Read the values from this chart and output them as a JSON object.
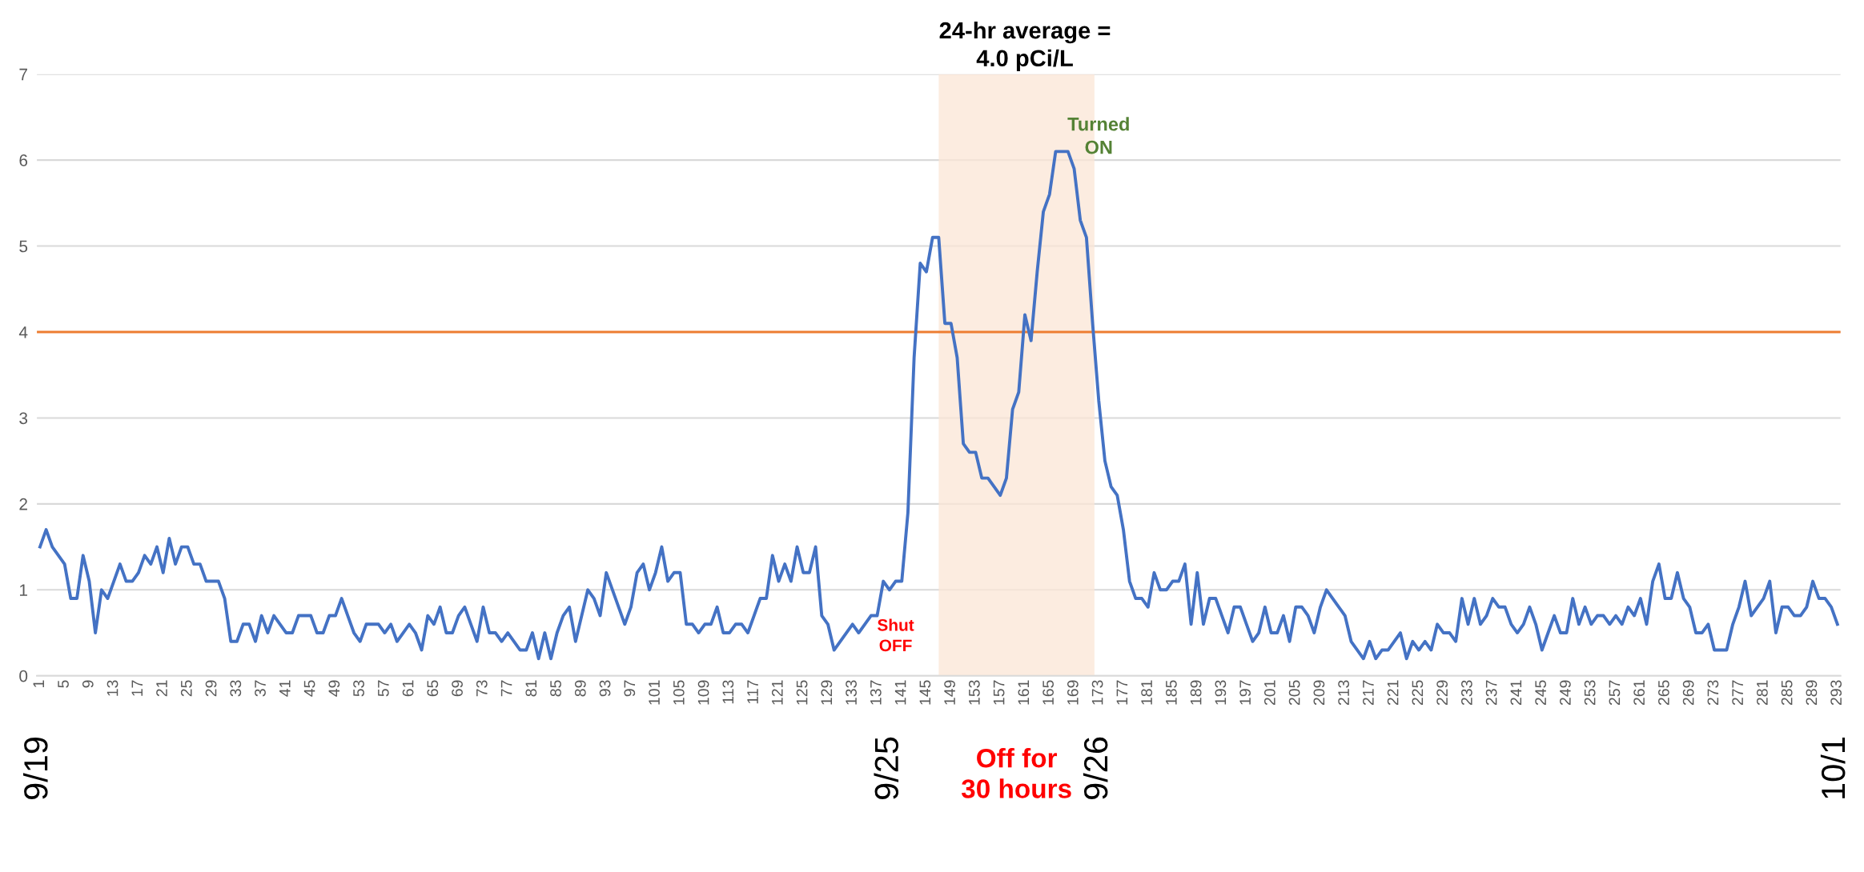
{
  "chart_data": {
    "type": "line",
    "x": [
      1,
      2,
      3,
      4,
      5,
      6,
      7,
      8,
      9,
      10,
      11,
      12,
      13,
      14,
      15,
      16,
      17,
      18,
      19,
      20,
      21,
      22,
      23,
      24,
      25,
      26,
      27,
      28,
      29,
      30,
      31,
      32,
      33,
      34,
      35,
      36,
      37,
      38,
      39,
      40,
      41,
      42,
      43,
      44,
      45,
      46,
      47,
      48,
      49,
      50,
      51,
      52,
      53,
      54,
      55,
      56,
      57,
      58,
      59,
      60,
      61,
      62,
      63,
      64,
      65,
      66,
      67,
      68,
      69,
      70,
      71,
      72,
      73,
      74,
      75,
      76,
      77,
      78,
      79,
      80,
      81,
      82,
      83,
      84,
      85,
      86,
      87,
      88,
      89,
      90,
      91,
      92,
      93,
      94,
      95,
      96,
      97,
      98,
      99,
      100,
      101,
      102,
      103,
      104,
      105,
      106,
      107,
      108,
      109,
      110,
      111,
      112,
      113,
      114,
      115,
      116,
      117,
      118,
      119,
      120,
      121,
      122,
      123,
      124,
      125,
      126,
      127,
      128,
      129,
      130,
      131,
      132,
      133,
      134,
      135,
      136,
      137,
      138,
      139,
      140,
      141,
      142,
      143,
      144,
      145,
      146,
      147,
      148,
      149,
      150,
      151,
      152,
      153,
      154,
      155,
      156,
      157,
      158,
      159,
      160,
      161,
      162,
      163,
      164,
      165,
      166,
      167,
      168,
      169,
      170,
      171,
      172,
      173,
      174,
      175,
      176,
      177,
      178,
      179,
      180,
      181,
      182,
      183,
      184,
      185,
      186,
      187,
      188,
      189,
      190,
      191,
      192,
      193,
      194,
      195,
      196,
      197,
      198,
      199,
      200,
      201,
      202,
      203,
      204,
      205,
      206,
      207,
      208,
      209,
      210,
      211,
      212,
      213,
      214,
      215,
      216,
      217,
      218,
      219,
      220,
      221,
      222,
      223,
      224,
      225,
      226,
      227,
      228,
      229,
      230,
      231,
      232,
      233,
      234,
      235,
      236,
      237,
      238,
      239,
      240,
      241,
      242,
      243,
      244,
      245,
      246,
      247,
      248,
      249,
      250,
      251,
      252,
      253,
      254,
      255,
      256,
      257,
      258,
      259,
      260,
      261,
      262,
      263,
      264,
      265,
      266,
      267,
      268,
      269,
      270,
      271,
      272,
      273,
      274,
      275,
      276,
      277,
      278,
      279,
      280,
      281,
      282,
      283,
      284,
      285,
      286,
      287,
      288,
      289,
      290,
      291,
      292,
      293
    ],
    "series": [
      {
        "color": "#4472c4",
        "values": [
          1.5,
          1.7,
          1.5,
          1.4,
          1.3,
          0.9,
          0.9,
          1.4,
          1.1,
          0.5,
          1.0,
          0.9,
          1.1,
          1.3,
          1.1,
          1.1,
          1.2,
          1.4,
          1.3,
          1.5,
          1.2,
          1.6,
          1.3,
          1.5,
          1.5,
          1.3,
          1.3,
          1.1,
          1.1,
          1.1,
          0.9,
          0.4,
          0.4,
          0.6,
          0.6,
          0.4,
          0.7,
          0.5,
          0.7,
          0.6,
          0.5,
          0.5,
          0.7,
          0.7,
          0.7,
          0.5,
          0.5,
          0.7,
          0.7,
          0.9,
          0.7,
          0.5,
          0.4,
          0.6,
          0.6,
          0.6,
          0.5,
          0.6,
          0.4,
          0.5,
          0.6,
          0.5,
          0.3,
          0.7,
          0.6,
          0.8,
          0.5,
          0.5,
          0.7,
          0.8,
          0.6,
          0.4,
          0.8,
          0.5,
          0.5,
          0.4,
          0.5,
          0.4,
          0.3,
          0.3,
          0.5,
          0.2,
          0.5,
          0.2,
          0.5,
          0.7,
          0.8,
          0.4,
          0.7,
          1.0,
          0.9,
          0.7,
          1.2,
          1.0,
          0.8,
          0.6,
          0.8,
          1.2,
          1.3,
          1.0,
          1.2,
          1.5,
          1.1,
          1.2,
          1.2,
          0.6,
          0.6,
          0.5,
          0.6,
          0.6,
          0.8,
          0.5,
          0.5,
          0.6,
          0.6,
          0.5,
          0.7,
          0.9,
          0.9,
          1.4,
          1.1,
          1.3,
          1.1,
          1.5,
          1.2,
          1.2,
          1.5,
          0.7,
          0.6,
          0.3,
          0.4,
          0.5,
          0.6,
          0.5,
          0.6,
          0.7,
          0.7,
          1.1,
          1.0,
          1.1,
          1.1,
          1.9,
          3.7,
          4.8,
          4.7,
          5.1,
          5.1,
          4.1,
          4.1,
          3.7,
          2.7,
          2.6,
          2.6,
          2.3,
          2.3,
          2.2,
          2.1,
          2.3,
          3.1,
          3.3,
          4.2,
          3.9,
          4.7,
          5.4,
          5.6,
          6.1,
          6.1,
          6.1,
          5.9,
          5.3,
          5.1,
          4.1,
          3.2,
          2.5,
          2.2,
          2.1,
          1.7,
          1.1,
          0.9,
          0.9,
          0.8,
          1.2,
          1.0,
          1.0,
          1.1,
          1.1,
          1.3,
          0.6,
          1.2,
          0.6,
          0.9,
          0.9,
          0.7,
          0.5,
          0.8,
          0.8,
          0.6,
          0.4,
          0.5,
          0.8,
          0.5,
          0.5,
          0.7,
          0.4,
          0.8,
          0.8,
          0.7,
          0.5,
          0.8,
          1.0,
          0.9,
          0.8,
          0.7,
          0.4,
          0.3,
          0.2,
          0.4,
          0.2,
          0.3,
          0.3,
          0.4,
          0.5,
          0.2,
          0.4,
          0.3,
          0.4,
          0.3,
          0.6,
          0.5,
          0.5,
          0.4,
          0.9,
          0.6,
          0.9,
          0.6,
          0.7,
          0.9,
          0.8,
          0.8,
          0.6,
          0.5,
          0.6,
          0.8,
          0.6,
          0.3,
          0.5,
          0.7,
          0.5,
          0.5,
          0.9,
          0.6,
          0.8,
          0.6,
          0.7,
          0.7,
          0.6,
          0.7,
          0.6,
          0.8,
          0.7,
          0.9,
          0.6,
          1.1,
          1.3,
          0.9,
          0.9,
          1.2,
          0.9,
          0.8,
          0.5,
          0.5,
          0.6,
          0.3,
          0.3,
          0.3,
          0.6,
          0.8,
          1.1,
          0.7,
          0.8,
          0.9,
          1.1,
          0.5,
          0.8,
          0.8,
          0.7,
          0.7,
          0.8,
          1.1,
          0.9,
          0.9,
          0.8,
          0.6
        ]
      }
    ],
    "xlim": [
      0.5,
      293.5
    ],
    "xticks": [
      1,
      5,
      9,
      13,
      17,
      21,
      25,
      29,
      33,
      37,
      41,
      45,
      49,
      53,
      57,
      61,
      65,
      69,
      73,
      77,
      81,
      85,
      89,
      93,
      97,
      101,
      105,
      109,
      113,
      117,
      121,
      125,
      129,
      133,
      137,
      141,
      145,
      149,
      153,
      157,
      161,
      165,
      169,
      173,
      177,
      181,
      185,
      189,
      193,
      197,
      201,
      205,
      209,
      213,
      217,
      221,
      225,
      229,
      233,
      237,
      241,
      245,
      249,
      253,
      257,
      261,
      265,
      269,
      273,
      277,
      281,
      285,
      289,
      293
    ],
    "ylim": [
      0,
      7
    ],
    "yticks": [
      0,
      1,
      2,
      3,
      4,
      5,
      6,
      7
    ],
    "grid": "y",
    "marker": "none",
    "line_style": "solid",
    "legend": false,
    "ref_lines": [
      {
        "axis": "y",
        "value": 4.0,
        "color": "#ed7d31"
      }
    ],
    "bands": [
      {
        "axis": "x",
        "from": 147,
        "to": 172.3,
        "color": "#fbe5d6",
        "label": "Off for\n30 hours"
      }
    ],
    "annotations": [
      "24-hr average =\n4.0 pCi/L",
      "Turned\nON",
      "Shut\nOFF",
      "9/19",
      "9/25",
      "9/26",
      "10/1"
    ]
  }
}
